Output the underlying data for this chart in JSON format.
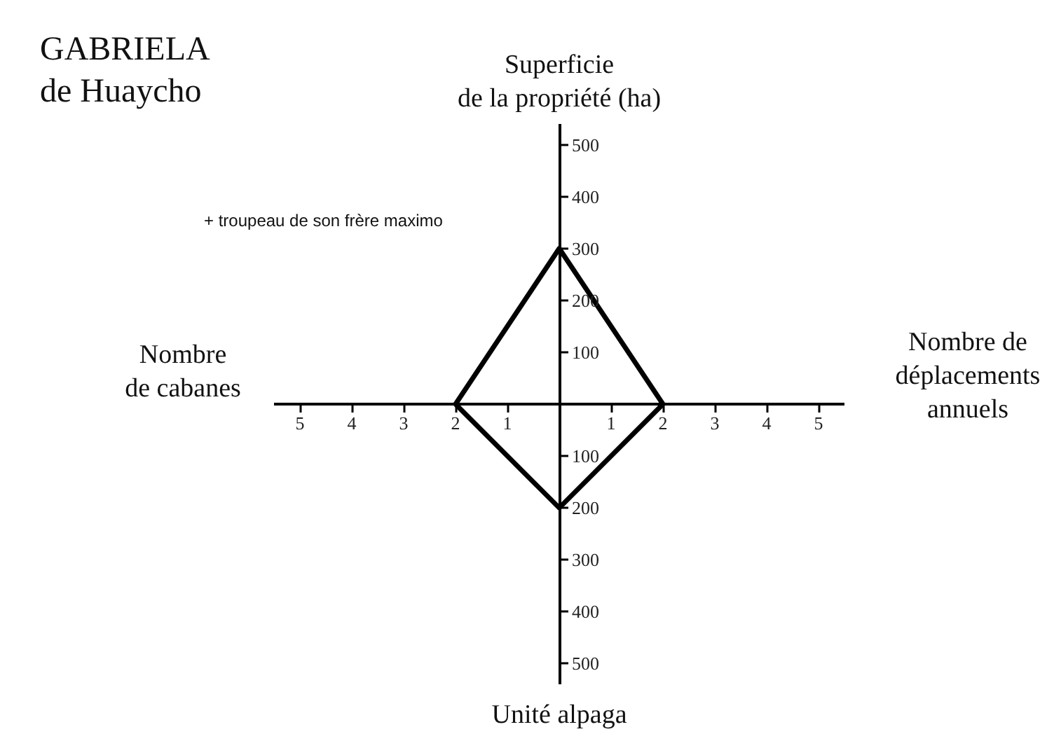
{
  "chart_data": {
    "type": "line",
    "title": "GABRIELA\nde Huaycho",
    "ylabel": "Superficie\nde la propriété (ha)",
    "xlabel": "Nombre de\ndéplacements\nannuels",
    "annotations": [
      "Nombre\nde cabanes",
      "Unité alpaga",
      "+ troupeau de son frère maximo"
    ],
    "series": [
      {
        "color": "#000000",
        "x": [
          -2,
          0,
          2
        ],
        "values": [
          0,
          300,
          0
        ]
      },
      {
        "color": "#000000",
        "x": [
          -2,
          0,
          2
        ],
        "values": [
          0,
          -200,
          0
        ]
      }
    ],
    "xlim": [
      -5.5,
      5.5
    ],
    "ylim": [
      -540,
      540
    ],
    "xticks": [
      {
        "value": -5,
        "label": "5"
      },
      {
        "value": -4,
        "label": "4"
      },
      {
        "value": -3,
        "label": "3"
      },
      {
        "value": -2,
        "label": "2"
      },
      {
        "value": -1,
        "label": "1"
      },
      1,
      2,
      3,
      4,
      5
    ],
    "yticks": [
      {
        "value": -500,
        "label": "500"
      },
      {
        "value": -400,
        "label": "400"
      },
      {
        "value": -300,
        "label": "300"
      },
      {
        "value": -200,
        "label": "200"
      },
      {
        "value": -100,
        "label": "100"
      },
      100,
      200,
      300,
      400,
      500
    ],
    "marker": "none",
    "line_style": "solid"
  }
}
